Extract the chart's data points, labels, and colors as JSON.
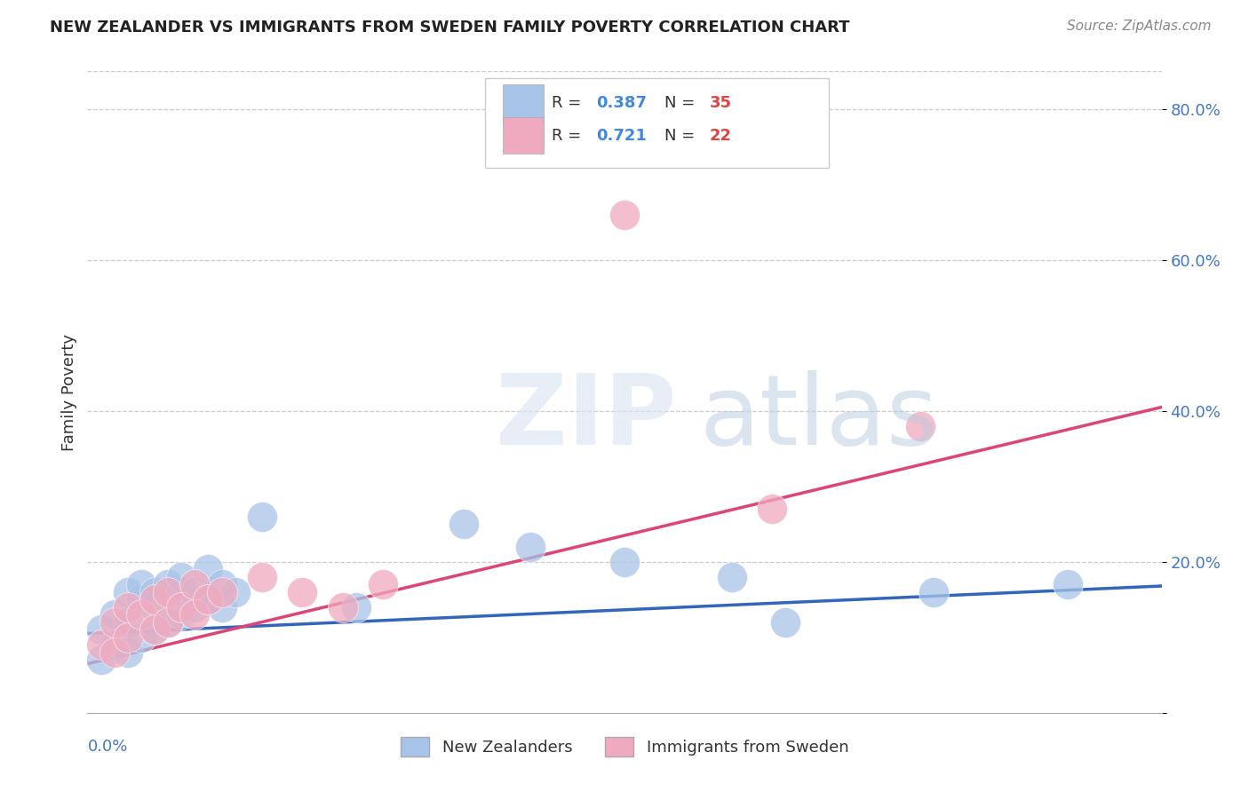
{
  "title": "NEW ZEALANDER VS IMMIGRANTS FROM SWEDEN FAMILY POVERTY CORRELATION CHART",
  "source": "Source: ZipAtlas.com",
  "ylabel": "Family Poverty",
  "xlim": [
    0.0,
    0.08
  ],
  "ylim": [
    0.0,
    0.85
  ],
  "yticks": [
    0.0,
    0.2,
    0.4,
    0.6,
    0.8
  ],
  "ytick_labels": [
    "",
    "20.0%",
    "40.0%",
    "60.0%",
    "80.0%"
  ],
  "nz_color": "#a8c4e8",
  "sw_color": "#f0aabf",
  "nz_line_color": "#3366bb",
  "sw_line_color": "#dd4477",
  "background_color": "#ffffff",
  "grid_color": "#cccccc",
  "nz_x": [
    0.001,
    0.001,
    0.002,
    0.002,
    0.003,
    0.003,
    0.003,
    0.004,
    0.004,
    0.004,
    0.005,
    0.005,
    0.005,
    0.006,
    0.006,
    0.006,
    0.007,
    0.007,
    0.007,
    0.008,
    0.008,
    0.009,
    0.009,
    0.01,
    0.01,
    0.011,
    0.013,
    0.02,
    0.028,
    0.033,
    0.04,
    0.048,
    0.052,
    0.063,
    0.073
  ],
  "nz_y": [
    0.07,
    0.11,
    0.09,
    0.13,
    0.08,
    0.12,
    0.16,
    0.1,
    0.15,
    0.17,
    0.11,
    0.14,
    0.16,
    0.12,
    0.15,
    0.17,
    0.13,
    0.16,
    0.18,
    0.14,
    0.16,
    0.15,
    0.19,
    0.14,
    0.17,
    0.16,
    0.26,
    0.14,
    0.25,
    0.22,
    0.2,
    0.18,
    0.12,
    0.16,
    0.17
  ],
  "sw_x": [
    0.001,
    0.002,
    0.002,
    0.003,
    0.003,
    0.004,
    0.005,
    0.005,
    0.006,
    0.006,
    0.007,
    0.008,
    0.008,
    0.009,
    0.01,
    0.013,
    0.016,
    0.019,
    0.022,
    0.04,
    0.051,
    0.062
  ],
  "sw_y": [
    0.09,
    0.08,
    0.12,
    0.1,
    0.14,
    0.13,
    0.11,
    0.15,
    0.12,
    0.16,
    0.14,
    0.13,
    0.17,
    0.15,
    0.16,
    0.18,
    0.16,
    0.14,
    0.17,
    0.66,
    0.27,
    0.38
  ],
  "nz_line_x0": 0.0,
  "nz_line_x1": 0.08,
  "nz_line_y0": 0.105,
  "nz_line_y1": 0.168,
  "sw_line_x0": 0.0,
  "sw_line_x1": 0.08,
  "sw_line_y0": 0.065,
  "sw_line_y1": 0.405
}
